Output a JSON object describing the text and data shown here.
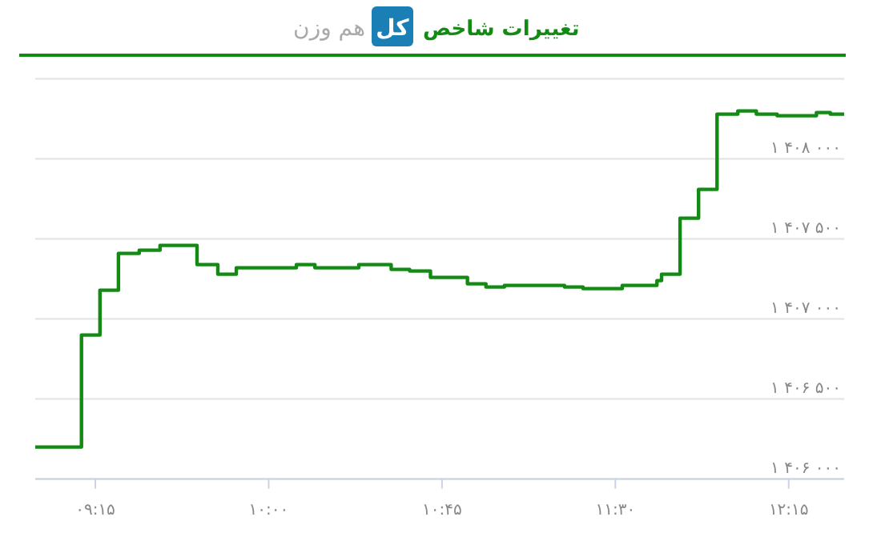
{
  "chart_data": {
    "type": "step",
    "title": "تغییرات شاخص",
    "subtitle": "هم وزن",
    "annotations": [
      "کل"
    ],
    "x": [
      8.99,
      9.19,
      9.27,
      9.35,
      9.44,
      9.53,
      9.69,
      9.78,
      9.86,
      9.94,
      10.12,
      10.2,
      10.28,
      10.39,
      10.53,
      10.61,
      10.7,
      10.77,
      10.86,
      10.94,
      11.02,
      11.28,
      11.36,
      11.53,
      11.68,
      11.7,
      11.78,
      11.86,
      11.94,
      12.03,
      12.11,
      12.2,
      12.37,
      12.43,
      12.49
    ],
    "values": [
      1406200,
      1406900,
      1407180,
      1407410,
      1407430,
      1407460,
      1407340,
      1407280,
      1407320,
      1407320,
      1407340,
      1407320,
      1407320,
      1407340,
      1407310,
      1407300,
      1407260,
      1407260,
      1407220,
      1407200,
      1407210,
      1407200,
      1407190,
      1407210,
      1407240,
      1407280,
      1407630,
      1407810,
      1408280,
      1408300,
      1408280,
      1408270,
      1408290,
      1408280,
      1408280
    ],
    "color": "#138a13",
    "xlim": [
      8.99,
      12.49
    ],
    "xticks": [
      {
        "value": 9.25,
        "label": "۰۹:۱۵"
      },
      {
        "value": 10,
        "label": "۱۰:۰۰"
      },
      {
        "value": 10.75,
        "label": "۱۰:۴۵"
      },
      {
        "value": 11.5,
        "label": "۱۱:۳۰"
      },
      {
        "value": 12.25,
        "label": "۱۲:۱۵"
      }
    ],
    "ylim": [
      1406000,
      1408500
    ],
    "yticks": [
      {
        "value": 1406000,
        "label": "۱ ۴۰۶ ۰۰۰"
      },
      {
        "value": 1406500,
        "label": "۱ ۴۰۶ ۵۰۰"
      },
      {
        "value": 1407000,
        "label": "۱ ۴۰۷ ۰۰۰"
      },
      {
        "value": 1407500,
        "label": "۱ ۴۰۷ ۵۰۰"
      },
      {
        "value": 1408000,
        "label": "۱ ۴۰۸ ۰۰۰"
      },
      {
        "value": 1408500,
        "label": null
      }
    ],
    "grid": "y"
  }
}
